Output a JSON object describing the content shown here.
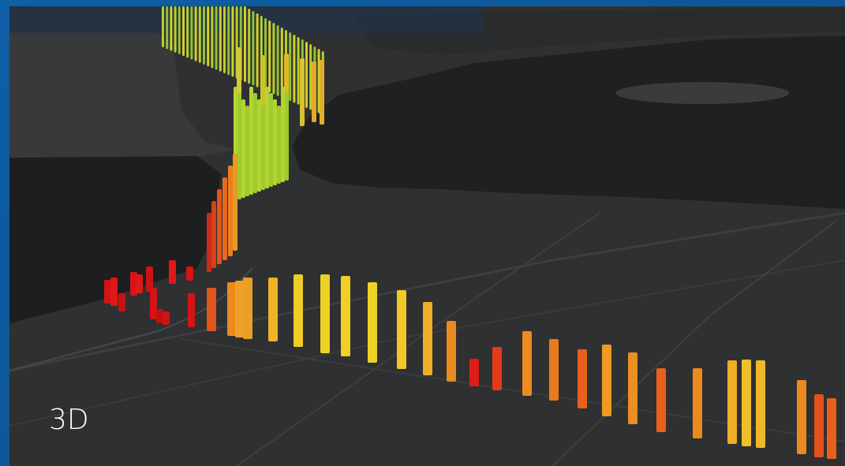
{
  "label": "3D"
}
